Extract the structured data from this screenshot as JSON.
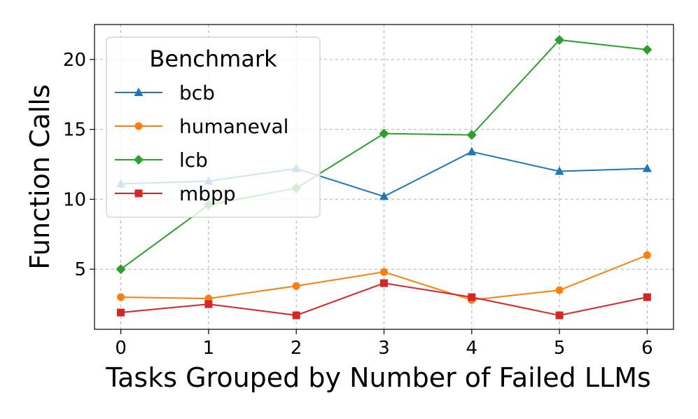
{
  "chart_data": {
    "type": "line",
    "xlabel": "Tasks Grouped by Number of Failed LLMs",
    "ylabel": "Function Calls",
    "x": [
      0,
      1,
      2,
      3,
      4,
      5,
      6
    ],
    "x_ticks": [
      "0",
      "1",
      "2",
      "3",
      "4",
      "5",
      "6"
    ],
    "y_ticks": [
      "5",
      "10",
      "15",
      "20"
    ],
    "xlim": [
      -0.3,
      6.3
    ],
    "ylim": [
      0.7,
      22.5
    ],
    "grid": true,
    "legend": {
      "title": "Benchmark",
      "placement": "upper-left"
    },
    "series": [
      {
        "name": "bcb",
        "color": "#1f77b4",
        "marker": "triangle",
        "values": [
          11.1,
          11.3,
          12.2,
          10.2,
          13.4,
          12.0,
          12.2
        ]
      },
      {
        "name": "humaneval",
        "color": "#ff7f0e",
        "marker": "circle",
        "values": [
          3.0,
          2.9,
          3.8,
          4.8,
          2.8,
          3.5,
          6.0
        ]
      },
      {
        "name": "lcb",
        "color": "#2ca02c",
        "marker": "diamond",
        "values": [
          5.0,
          9.6,
          10.8,
          14.7,
          14.6,
          21.4,
          20.7
        ]
      },
      {
        "name": "mbpp",
        "color": "#d62728",
        "marker": "square",
        "values": [
          1.9,
          2.5,
          1.7,
          4.0,
          3.0,
          1.7,
          3.0
        ]
      }
    ]
  }
}
